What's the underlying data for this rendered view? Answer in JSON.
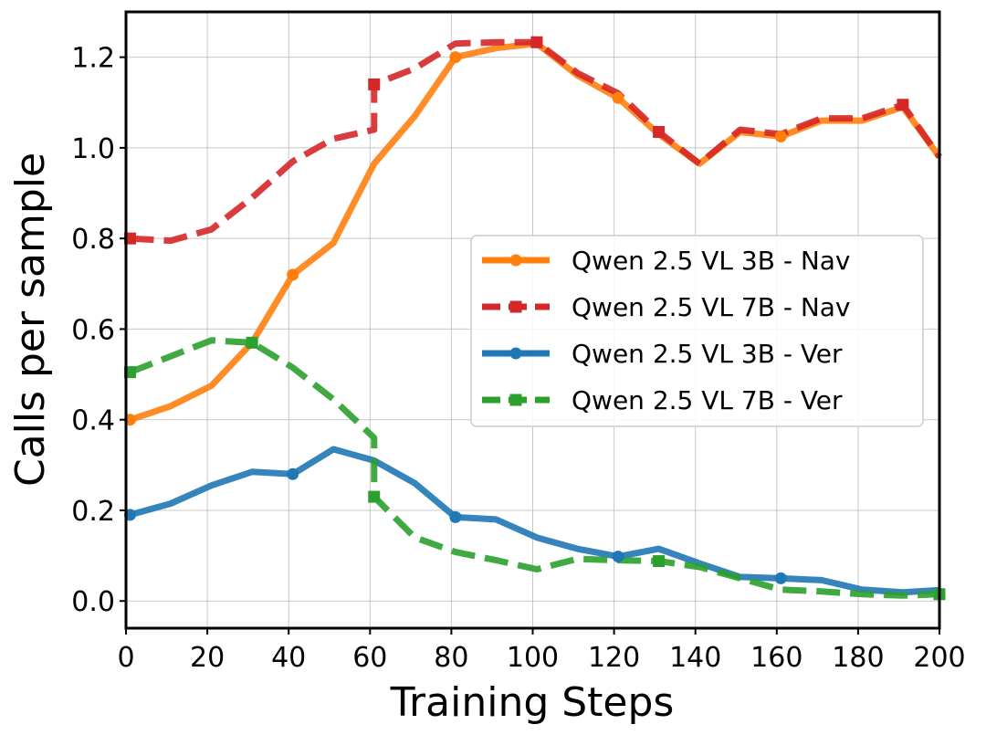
{
  "chart_data": {
    "type": "line",
    "title": "",
    "xlabel": "Training Steps",
    "ylabel": "Calls per sample",
    "xlim": [
      0,
      200
    ],
    "ylim": [
      -0.06,
      1.3
    ],
    "xticks": [
      0,
      20,
      40,
      60,
      80,
      100,
      120,
      140,
      160,
      180,
      200
    ],
    "yticks": [
      0.0,
      0.2,
      0.4,
      0.6,
      0.8,
      1.0,
      1.2
    ],
    "xtick_labels": [
      "0",
      "20",
      "40",
      "60",
      "80",
      "100",
      "120",
      "140",
      "160",
      "180",
      "200"
    ],
    "ytick_labels": [
      "0.0",
      "0.2",
      "0.4",
      "0.6",
      "0.8",
      "1.0",
      "1.2"
    ],
    "grid": true,
    "legend_position": "center-right",
    "series": [
      {
        "name": "Qwen 2.5 VL 3B - Nav",
        "color": "#ff7f0e",
        "style": "solid",
        "marker": "circle",
        "x": [
          1,
          11,
          21,
          31,
          41,
          51,
          61,
          71,
          81,
          91,
          101,
          111,
          121,
          131,
          141,
          151,
          161,
          171,
          181,
          191,
          200
        ],
        "y": [
          0.4,
          0.43,
          0.475,
          0.57,
          0.72,
          0.79,
          0.965,
          1.07,
          1.2,
          1.22,
          1.23,
          1.16,
          1.11,
          1.03,
          0.965,
          1.035,
          1.025,
          1.06,
          1.06,
          1.09,
          0.98
        ],
        "marker_x": [
          1,
          41,
          81,
          121,
          161
        ],
        "marker_y": [
          0.4,
          0.72,
          1.2,
          1.11,
          1.025
        ]
      },
      {
        "name": "Qwen 2.5 VL 7B - Nav",
        "color": "#d62728",
        "style": "dashed",
        "marker": "square",
        "x": [
          1,
          11,
          21,
          31,
          41,
          51,
          61,
          61,
          71,
          81,
          91,
          101,
          111,
          121,
          131,
          141,
          151,
          161,
          171,
          181,
          191,
          200
        ],
        "y": [
          0.8,
          0.795,
          0.82,
          0.89,
          0.97,
          1.02,
          1.04,
          1.14,
          1.175,
          1.23,
          1.233,
          1.233,
          1.165,
          1.12,
          1.035,
          0.965,
          1.04,
          1.03,
          1.065,
          1.065,
          1.095,
          0.98
        ],
        "marker_x": [
          1,
          61,
          101,
          131,
          191
        ],
        "marker_y": [
          0.8,
          1.14,
          1.233,
          1.035,
          1.095
        ]
      },
      {
        "name": "Qwen 2.5 VL 3B - Ver",
        "color": "#1f77b4",
        "style": "solid",
        "marker": "circle",
        "x": [
          1,
          11,
          21,
          31,
          41,
          51,
          61,
          71,
          81,
          91,
          101,
          111,
          121,
          131,
          141,
          151,
          161,
          171,
          181,
          191,
          200
        ],
        "y": [
          0.19,
          0.215,
          0.255,
          0.285,
          0.28,
          0.335,
          0.31,
          0.26,
          0.185,
          0.18,
          0.14,
          0.115,
          0.098,
          0.115,
          0.083,
          0.053,
          0.05,
          0.046,
          0.025,
          0.019,
          0.024
        ],
        "marker_x": [
          1,
          41,
          81,
          121,
          161
        ],
        "marker_y": [
          0.19,
          0.28,
          0.185,
          0.098,
          0.05
        ]
      },
      {
        "name": "Qwen 2.5 VL 7B - Ver",
        "color": "#2ca02c",
        "style": "dashed",
        "marker": "square",
        "x": [
          1,
          11,
          21,
          31,
          41,
          51,
          61,
          61,
          71,
          81,
          91,
          101,
          111,
          121,
          131,
          141,
          151,
          161,
          171,
          181,
          191,
          200
        ],
        "y": [
          0.505,
          0.54,
          0.575,
          0.57,
          0.515,
          0.445,
          0.36,
          0.23,
          0.14,
          0.108,
          0.09,
          0.07,
          0.093,
          0.09,
          0.088,
          0.075,
          0.05,
          0.025,
          0.021,
          0.015,
          0.012,
          0.015
        ],
        "marker_x": [
          1,
          31,
          61,
          131,
          200
        ],
        "marker_y": [
          0.505,
          0.57,
          0.23,
          0.088,
          0.015
        ]
      }
    ]
  }
}
